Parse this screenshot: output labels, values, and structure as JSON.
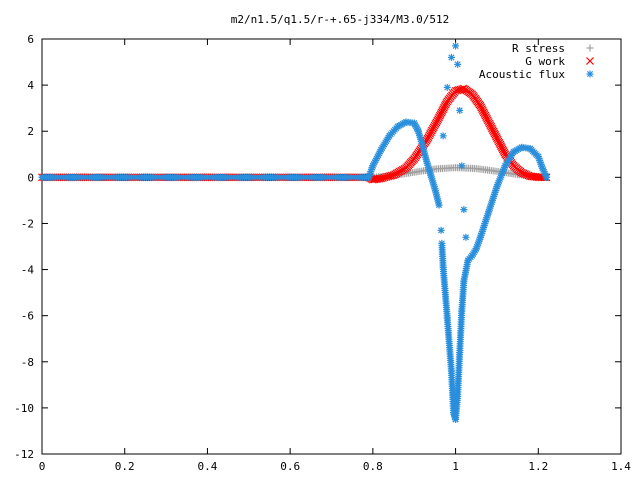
{
  "chart_data": {
    "type": "scatter",
    "title": "m2/n1.5/q1.5/r-+.65-j334/M3.0/512",
    "xlabel": "",
    "ylabel": "",
    "xlim": [
      0,
      1.4
    ],
    "ylim": [
      -12,
      6
    ],
    "x_ticks": [
      "0",
      "0.2",
      "0.4",
      "0.6",
      "0.8",
      "1",
      "1.2",
      "1.4"
    ],
    "y_ticks": [
      "6",
      "4",
      "2",
      "0",
      "-2",
      "-4",
      "-6",
      "-8",
      "-10",
      "-12"
    ],
    "grid": false,
    "legend_position": "top-right",
    "series": [
      {
        "name": "R stress",
        "marker": "plus",
        "color": "#a0a0a0",
        "points": [
          [
            0.0,
            0.0
          ],
          [
            0.2,
            0.0
          ],
          [
            0.4,
            0.0
          ],
          [
            0.6,
            0.0
          ],
          [
            0.78,
            0.0
          ],
          [
            0.8,
            0.0
          ],
          [
            0.85,
            0.08
          ],
          [
            0.9,
            0.22
          ],
          [
            0.95,
            0.36
          ],
          [
            1.0,
            0.42
          ],
          [
            1.05,
            0.38
          ],
          [
            1.1,
            0.26
          ],
          [
            1.15,
            0.12
          ],
          [
            1.2,
            0.03
          ],
          [
            1.22,
            0.0
          ]
        ]
      },
      {
        "name": "G work",
        "marker": "cross",
        "color": "#ff0000",
        "points": [
          [
            0.0,
            0.0
          ],
          [
            0.2,
            0.0
          ],
          [
            0.4,
            0.0
          ],
          [
            0.6,
            0.0
          ],
          [
            0.79,
            0.0
          ],
          [
            0.8,
            -0.1
          ],
          [
            0.82,
            -0.05
          ],
          [
            0.85,
            0.1
          ],
          [
            0.88,
            0.4
          ],
          [
            0.9,
            0.8
          ],
          [
            0.93,
            1.6
          ],
          [
            0.96,
            2.6
          ],
          [
            0.98,
            3.3
          ],
          [
            1.0,
            3.75
          ],
          [
            1.02,
            3.85
          ],
          [
            1.04,
            3.6
          ],
          [
            1.06,
            3.1
          ],
          [
            1.08,
            2.4
          ],
          [
            1.1,
            1.7
          ],
          [
            1.12,
            1.0
          ],
          [
            1.14,
            0.5
          ],
          [
            1.16,
            0.2
          ],
          [
            1.18,
            0.05
          ],
          [
            1.2,
            0.0
          ],
          [
            1.22,
            0.0
          ]
        ]
      },
      {
        "name": "Acoustic flux",
        "marker": "star",
        "color": "#2a8fdc",
        "points": [
          [
            0.0,
            0.0
          ],
          [
            0.2,
            0.0
          ],
          [
            0.4,
            0.0
          ],
          [
            0.6,
            0.0
          ],
          [
            0.79,
            0.0
          ],
          [
            0.8,
            0.5
          ],
          [
            0.82,
            1.2
          ],
          [
            0.84,
            1.8
          ],
          [
            0.86,
            2.2
          ],
          [
            0.88,
            2.4
          ],
          [
            0.9,
            2.35
          ],
          [
            0.91,
            2.0
          ],
          [
            0.92,
            1.4
          ],
          [
            0.93,
            0.7
          ],
          [
            0.94,
            0.1
          ],
          [
            0.95,
            -0.5
          ],
          [
            0.96,
            -1.2
          ],
          [
            0.965,
            -2.3
          ],
          [
            0.97,
            -3.9
          ],
          [
            0.98,
            -6.1
          ],
          [
            0.99,
            -8.4
          ],
          [
            0.995,
            -10.2
          ],
          [
            1.0,
            -10.5
          ],
          [
            1.005,
            -9.5
          ],
          [
            1.01,
            -7.6
          ],
          [
            1.015,
            -5.8
          ],
          [
            1.02,
            -4.5
          ],
          [
            1.03,
            -3.6
          ],
          [
            1.04,
            -3.4
          ],
          [
            1.05,
            -3.1
          ],
          [
            1.06,
            -2.6
          ],
          [
            1.08,
            -1.5
          ],
          [
            1.1,
            -0.4
          ],
          [
            1.12,
            0.5
          ],
          [
            1.14,
            1.1
          ],
          [
            1.16,
            1.3
          ],
          [
            1.18,
            1.25
          ],
          [
            1.2,
            0.9
          ],
          [
            1.21,
            0.4
          ],
          [
            1.22,
            0.0
          ],
          [
            0.97,
            1.8
          ],
          [
            0.98,
            3.9
          ],
          [
            0.99,
            5.2
          ],
          [
            1.0,
            5.7
          ],
          [
            1.005,
            4.9
          ],
          [
            1.01,
            2.9
          ],
          [
            1.015,
            0.5
          ],
          [
            1.02,
            -1.4
          ],
          [
            1.025,
            -2.6
          ]
        ]
      }
    ]
  }
}
